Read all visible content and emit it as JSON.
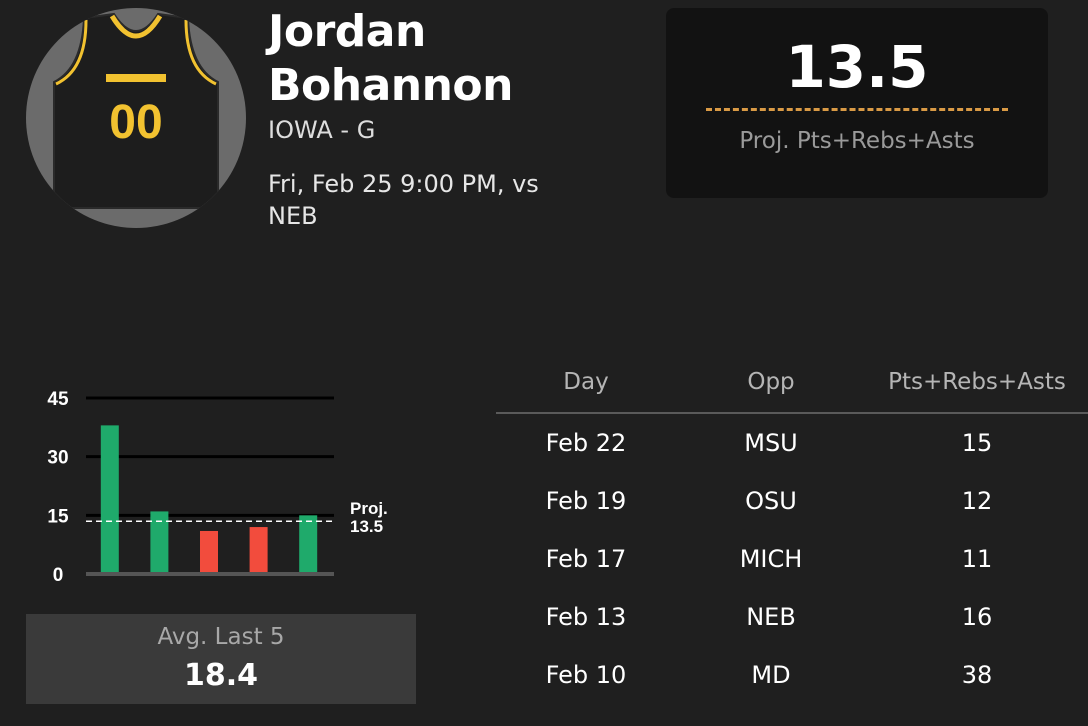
{
  "player": {
    "first_name": "Jordan",
    "last_name": "Bohannon",
    "team_position": "IOWA - G",
    "game": "Fri, Feb 25 9:00 PM, vs NEB",
    "jersey_number": "00",
    "jersey_color": "#1d1d1d",
    "jersey_trim_color": "#f2c230"
  },
  "projection": {
    "value": "13.5",
    "label": "Proj. Pts+Rebs+Asts"
  },
  "average": {
    "label": "Avg. Last 5",
    "value": "18.4"
  },
  "chart_data": {
    "type": "bar",
    "categories": [
      "Feb 10",
      "Feb 13",
      "Feb 17",
      "Feb 19",
      "Feb 22"
    ],
    "values": [
      38,
      16,
      11,
      12,
      15
    ],
    "ylim": [
      0,
      45
    ],
    "yticks": [
      "0",
      "15",
      "30",
      "45"
    ],
    "projection_line": 13.5,
    "projection_label_1": "Proj.",
    "projection_label_2": "13.5",
    "colors": {
      "over": "#1faa6b",
      "under": "#f24c3d",
      "grid": "#000000",
      "baseline": "#555555"
    }
  },
  "table": {
    "headers": [
      "Day",
      "Opp",
      "Pts+Rebs+Asts"
    ],
    "rows": [
      [
        "Feb 22",
        "MSU",
        "15"
      ],
      [
        "Feb 19",
        "OSU",
        "12"
      ],
      [
        "Feb 17",
        "MICH",
        "11"
      ],
      [
        "Feb 13",
        "NEB",
        "16"
      ],
      [
        "Feb 10",
        "MD",
        "38"
      ]
    ]
  }
}
